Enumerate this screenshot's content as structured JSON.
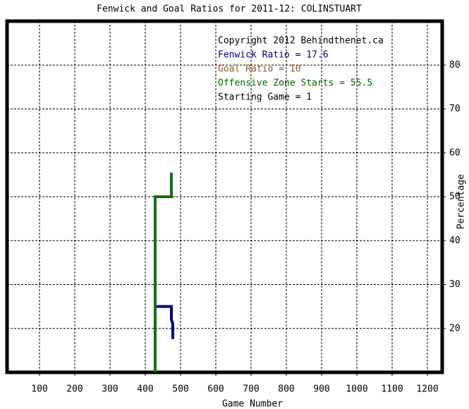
{
  "chart_data": {
    "type": "line",
    "title": "Fenwick and Goal Ratios for 2011-12: COLINSTUART",
    "xlabel": "Game Number",
    "ylabel": "Percentage",
    "xlim": [
      8,
      1242
    ],
    "ylim": [
      10,
      90
    ],
    "xticks": [
      100,
      200,
      300,
      400,
      500,
      600,
      700,
      800,
      900,
      1000,
      1100,
      1200
    ],
    "yticks": [
      20,
      30,
      40,
      50,
      60,
      70,
      80
    ],
    "grid": true,
    "annotations": [
      {
        "text": "Copyright 2012 Behindthenet.ca",
        "color": "#000000"
      },
      {
        "text": "Fenwick Ratio = 17.6",
        "color": "#000080"
      },
      {
        "text": "Goal Ratio = 10",
        "color": "#8b5a2b"
      },
      {
        "text": "Offensive Zone Starts = 55.5",
        "color": "#006400"
      },
      {
        "text": "Starting Game = 1",
        "color": "#000000"
      }
    ],
    "series": [
      {
        "color": "#000080",
        "x": [
          428,
          474,
          474,
          478,
          478
        ],
        "values": [
          25,
          25,
          22,
          21,
          17.6
        ]
      },
      {
        "color": "#1a6b1a",
        "x": [
          428,
          428,
          474,
          474
        ],
        "values": [
          10,
          50,
          50,
          55.5
        ]
      }
    ]
  }
}
